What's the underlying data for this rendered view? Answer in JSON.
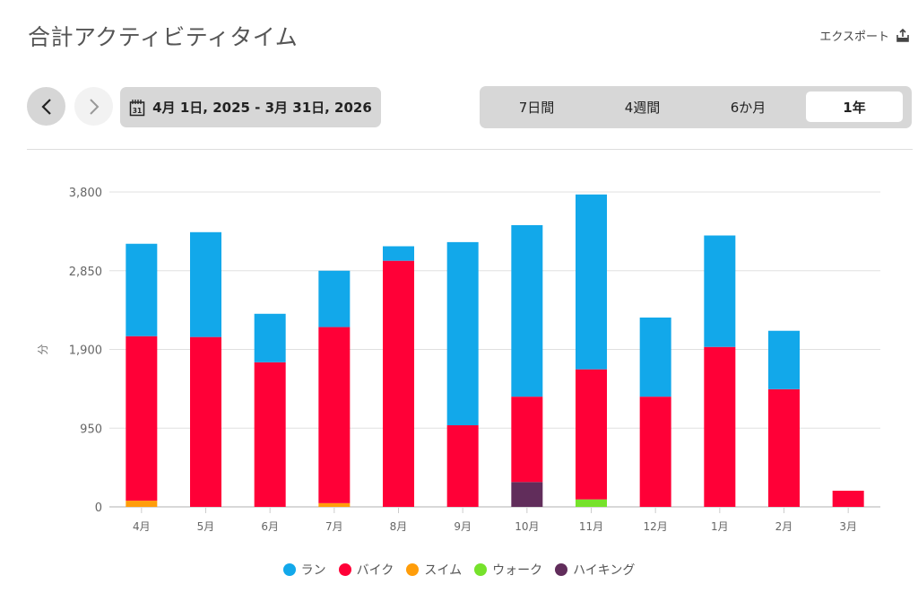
{
  "header": {
    "title": "合計アクティビティタイム",
    "export_label": "エクスポート"
  },
  "controls": {
    "prev_icon": "chevron-left-icon",
    "next_icon": "chevron-right-icon",
    "date_range": "4月 1日, 2025 - 3月 31日, 2026",
    "calendar_icon": "calendar-icon",
    "periods": [
      {
        "label": "7日間",
        "active": false
      },
      {
        "label": "4週間",
        "active": false
      },
      {
        "label": "6か月",
        "active": false
      },
      {
        "label": "1年",
        "active": true
      }
    ]
  },
  "colors": {
    "run": "#12a8ea",
    "bike": "#ff0037",
    "swim": "#ff9d0a",
    "walk": "#76e22b",
    "hike": "#612d5b"
  },
  "chart_data": {
    "type": "bar",
    "stacked": true,
    "title": "合計アクティビティタイム",
    "xlabel": "",
    "ylabel": "分",
    "ylim": [
      0,
      3800
    ],
    "yticks": [
      0,
      950,
      1900,
      2850,
      3800
    ],
    "ytick_labels": [
      "0",
      "950",
      "1,900",
      "2,850",
      "3,800"
    ],
    "grid": true,
    "legend_position": "bottom",
    "categories": [
      "4月",
      "5月",
      "6月",
      "7月",
      "8月",
      "9月",
      "10月",
      "11月",
      "12月",
      "1月",
      "2月",
      "3月"
    ],
    "series": [
      {
        "name": "ハイキング",
        "key": "hike",
        "values": [
          0,
          0,
          0,
          0,
          0,
          0,
          300,
          0,
          0,
          0,
          0,
          0
        ]
      },
      {
        "name": "ウォーク",
        "key": "walk",
        "values": [
          0,
          0,
          0,
          0,
          0,
          0,
          0,
          90,
          0,
          0,
          0,
          0
        ]
      },
      {
        "name": "スイム",
        "key": "swim",
        "values": [
          75,
          0,
          0,
          45,
          0,
          0,
          0,
          0,
          0,
          0,
          0,
          0
        ]
      },
      {
        "name": "バイク",
        "key": "bike",
        "values": [
          1985,
          2050,
          1745,
          2125,
          2970,
          985,
          1030,
          1570,
          1330,
          1930,
          1420,
          195
        ]
      },
      {
        "name": "ラン",
        "key": "run",
        "values": [
          1115,
          1265,
          585,
          680,
          175,
          2210,
          2070,
          2110,
          955,
          1345,
          705,
          0
        ]
      }
    ],
    "legend": [
      {
        "name": "ラン",
        "key": "run"
      },
      {
        "name": "バイク",
        "key": "bike"
      },
      {
        "name": "スイム",
        "key": "swim"
      },
      {
        "name": "ウォーク",
        "key": "walk"
      },
      {
        "name": "ハイキング",
        "key": "hike"
      }
    ]
  }
}
